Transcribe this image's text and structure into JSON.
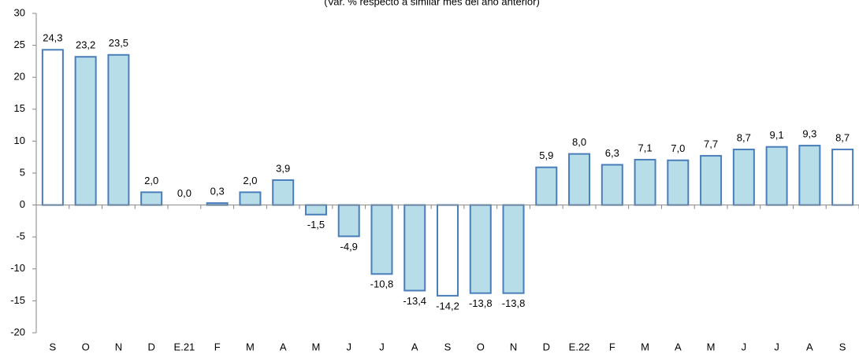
{
  "chart_data": {
    "type": "bar",
    "subtitle": "(Var. % respecto a similar mes del año anterior)",
    "categories": [
      "S",
      "O",
      "N",
      "D",
      "E.21",
      "F",
      "M",
      "A",
      "M",
      "J",
      "J",
      "A",
      "S",
      "O",
      "N",
      "D",
      "E.22",
      "F",
      "M",
      "A",
      "M",
      "J",
      "J",
      "A",
      "S"
    ],
    "values": [
      24.3,
      23.2,
      23.5,
      2.0,
      0.0,
      0.3,
      2.0,
      3.9,
      -1.5,
      -4.9,
      -10.8,
      -13.4,
      -14.2,
      -13.8,
      -13.8,
      5.9,
      8.0,
      6.3,
      7.1,
      7.0,
      7.7,
      8.7,
      9.1,
      9.3,
      8.7
    ],
    "value_labels": [
      "24,3",
      "23,2",
      "23,5",
      "2,0",
      "0,0",
      "0,3",
      "2,0",
      "3,9",
      "-1,5",
      "-4,9",
      "-10,8",
      "-13,4",
      "-14,2",
      "-13,8",
      "-13,8",
      "5,9",
      "8,0",
      "6,3",
      "7,1",
      "7,0",
      "7,7",
      "8,7",
      "9,1",
      "9,3",
      "8,7"
    ],
    "colors": [
      "#ffffff",
      "#b7dde8",
      "#b7dde8",
      "#b7dde8",
      "#b7dde8",
      "#b7dde8",
      "#b7dde8",
      "#b7dde8",
      "#b7dde8",
      "#b7dde8",
      "#b7dde8",
      "#b7dde8",
      "#ffffff",
      "#b7dde8",
      "#b7dde8",
      "#b7dde8",
      "#b7dde8",
      "#b7dde8",
      "#b7dde8",
      "#b7dde8",
      "#b7dde8",
      "#b7dde8",
      "#b7dde8",
      "#b7dde8",
      "#ffffff"
    ],
    "edge_color": "#4a7ebb",
    "ylim": [
      -20,
      30
    ],
    "yticks": [
      -20,
      -15,
      -10,
      -5,
      0,
      5,
      10,
      15,
      20,
      25,
      30
    ],
    "grid": false
  }
}
